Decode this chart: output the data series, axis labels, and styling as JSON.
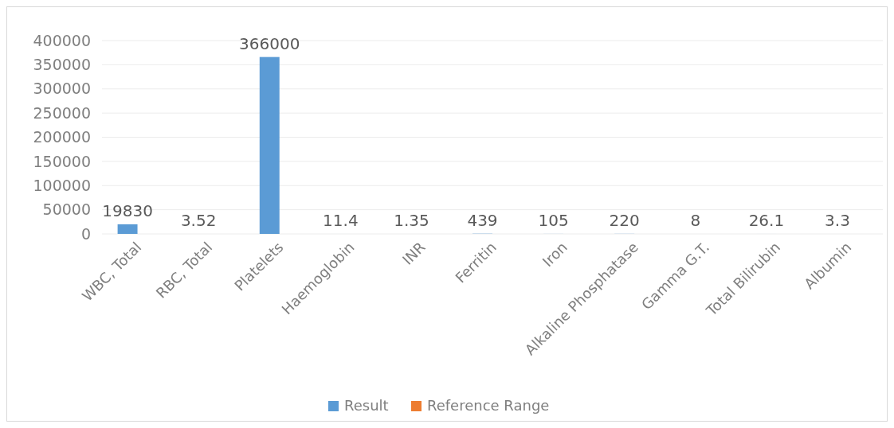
{
  "chart_data": {
    "type": "bar",
    "categories": [
      "WBC, Total",
      "RBC, Total",
      "Platelets",
      "Haemoglobin",
      "INR",
      "Ferritin",
      "Iron",
      "Alkaline Phosphatase",
      "Gamma G.T.",
      "Total Bilirubin",
      "Albumin"
    ],
    "series": [
      {
        "name": "Result",
        "color": "#5b9bd5",
        "values": [
          19830,
          3.52,
          366000,
          11.4,
          1.35,
          439,
          105,
          220,
          8,
          26.1,
          3.3
        ]
      },
      {
        "name": "Reference Range",
        "color": "#ed7d31",
        "values": [
          null,
          null,
          null,
          null,
          null,
          null,
          null,
          null,
          null,
          null,
          null
        ]
      }
    ],
    "ylim": [
      0,
      400000
    ],
    "yticks": [
      0,
      50000,
      100000,
      150000,
      200000,
      250000,
      300000,
      350000,
      400000
    ],
    "grid": "y",
    "legend": "bottom",
    "data_labels": true
  }
}
